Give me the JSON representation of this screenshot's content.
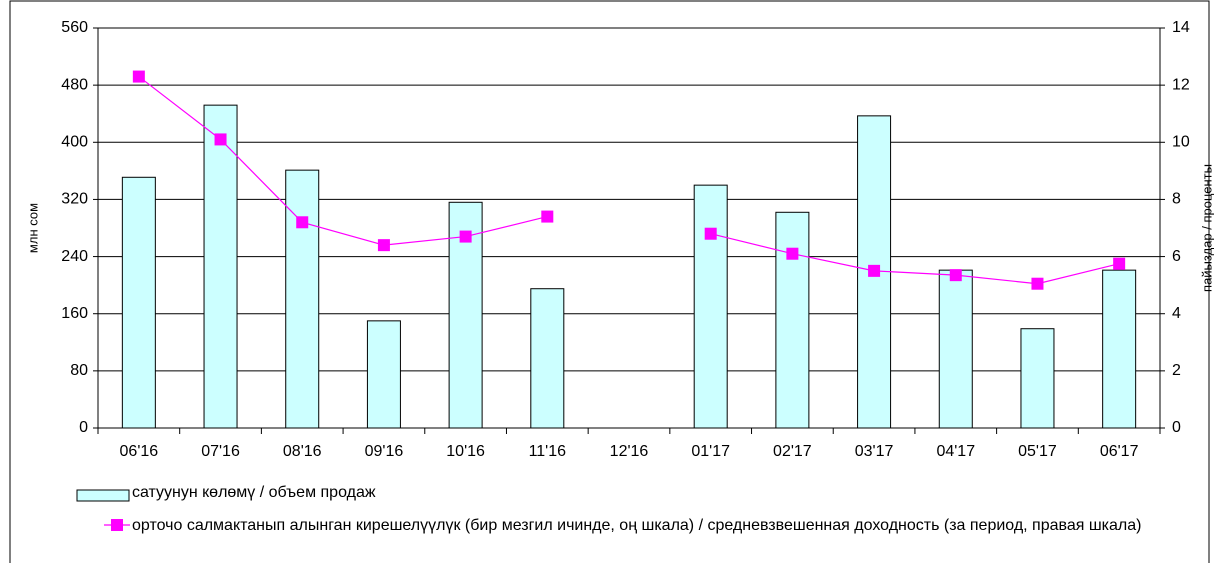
{
  "chart_data": {
    "type": "bar",
    "categories": [
      "06'16",
      "07'16",
      "08'16",
      "09'16",
      "10'16",
      "11'16",
      "12'16",
      "01'17",
      "02'17",
      "03'17",
      "04'17",
      "05'17",
      "06'17"
    ],
    "ylabel": "млн сом",
    "y2label": "пайыздар / проценты",
    "ylim": [
      0,
      560
    ],
    "yticks": [
      0,
      80,
      160,
      240,
      320,
      400,
      480,
      560
    ],
    "y2lim": [
      0,
      14
    ],
    "y2ticks": [
      0,
      2,
      4,
      6,
      8,
      10,
      12,
      14
    ],
    "grid": true,
    "series": [
      {
        "name": "сатуунун көлөмү /  объем продаж",
        "type": "bar",
        "color": "#ccffff",
        "values": [
          351,
          452,
          361,
          150,
          316,
          195,
          null,
          340,
          302,
          437,
          221,
          139,
          221
        ]
      },
      {
        "name": "орточо салмактанып алынган кирешелүүлүк (бир мезгил ичинде, оң шкала) / средневзвешенная доходность (за период, правая шкала)",
        "type": "line",
        "axis": "y2",
        "color": "#ff00ff",
        "values": [
          12.3,
          10.1,
          7.2,
          6.4,
          6.7,
          7.4,
          null,
          6.8,
          6.1,
          5.5,
          5.35,
          5.05,
          5.75
        ]
      }
    ]
  }
}
